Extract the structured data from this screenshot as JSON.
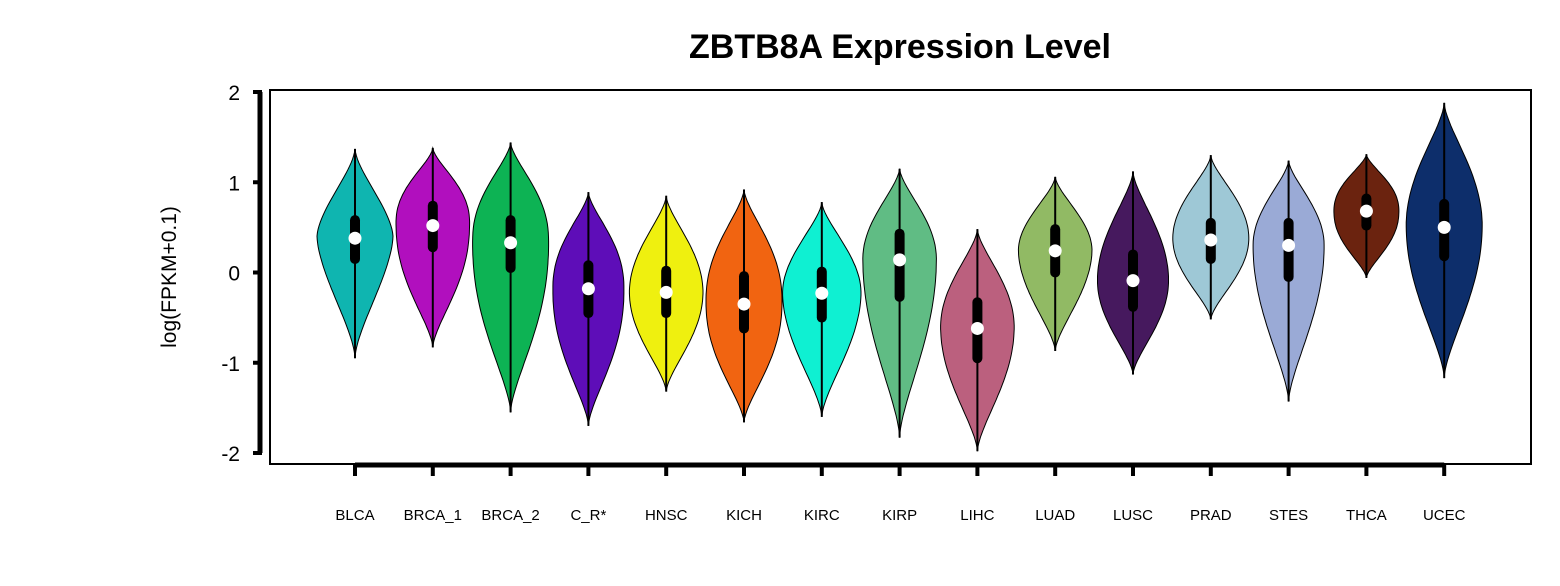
{
  "chart_data": {
    "type": "violin",
    "title": "ZBTB8A Expression Level",
    "xlabel": "",
    "ylabel": "log(FPKM+0.1)",
    "ylim": [
      -2,
      2
    ],
    "yticks": [
      "2",
      "1",
      "0",
      "-1",
      "-2"
    ],
    "ytick_values": [
      2,
      1,
      0,
      -1,
      -2
    ],
    "grid": false,
    "legend": "none",
    "box_color": "#000000",
    "median_marker_color": "#ffffff",
    "categories": [
      "BLCA",
      "BRCA_1",
      "BRCA_2",
      "C_R*",
      "HNSC",
      "KICH",
      "KIRC",
      "KIRP",
      "LIHC",
      "LUAD",
      "LUSC",
      "PRAD",
      "STES",
      "THCA",
      "UCEC"
    ],
    "series": [
      {
        "category": "BLCA",
        "color": "#0fb5b0",
        "min": -0.95,
        "max": 1.37,
        "q1": 0.15,
        "median": 0.38,
        "q3": 0.58,
        "mode": 0.4,
        "width": 0.62,
        "tail": 1.6
      },
      {
        "category": "BRCA_1",
        "color": "#b10fbe",
        "min": -0.83,
        "max": 1.38,
        "q1": 0.28,
        "median": 0.52,
        "q3": 0.74,
        "mode": 0.55,
        "width": 0.6,
        "tail": 2.2
      },
      {
        "category": "BRCA_2",
        "color": "#0db354",
        "min": -1.55,
        "max": 1.44,
        "q1": 0.05,
        "median": 0.33,
        "q3": 0.58,
        "mode": 0.35,
        "width": 0.62,
        "tail": 2.2
      },
      {
        "category": "C_R*",
        "color": "#5e0db8",
        "min": -1.7,
        "max": 0.89,
        "q1": -0.45,
        "median": -0.18,
        "q3": 0.08,
        "mode": -0.18,
        "width": 0.58,
        "tail": 2.2
      },
      {
        "category": "HNSC",
        "color": "#eff00f",
        "min": -1.32,
        "max": 0.85,
        "q1": -0.45,
        "median": -0.22,
        "q3": 0.02,
        "mode": -0.22,
        "width": 0.6,
        "tail": 2.0
      },
      {
        "category": "KICH",
        "color": "#f16411",
        "min": -1.66,
        "max": 0.92,
        "q1": -0.62,
        "median": -0.35,
        "q3": -0.04,
        "mode": -0.32,
        "width": 0.62,
        "tail": 2.2
      },
      {
        "category": "KIRC",
        "color": "#0ff0d2",
        "min": -1.6,
        "max": 0.78,
        "q1": -0.5,
        "median": -0.23,
        "q3": 0.01,
        "mode": -0.22,
        "width": 0.64,
        "tail": 1.9
      },
      {
        "category": "KIRP",
        "color": "#60bc84",
        "min": -1.83,
        "max": 1.15,
        "q1": -0.27,
        "median": 0.14,
        "q3": 0.43,
        "mode": 0.15,
        "width": 0.6,
        "tail": 2.0
      },
      {
        "category": "LIHC",
        "color": "#bb607e",
        "min": -1.98,
        "max": 0.48,
        "q1": -0.95,
        "median": -0.62,
        "q3": -0.33,
        "mode": -0.6,
        "width": 0.6,
        "tail": 2.0
      },
      {
        "category": "LUAD",
        "color": "#91ba64",
        "min": -0.87,
        "max": 1.06,
        "q1": 0.0,
        "median": 0.24,
        "q3": 0.48,
        "mode": 0.25,
        "width": 0.6,
        "tail": 1.9
      },
      {
        "category": "LUSC",
        "color": "#46195e",
        "min": -1.13,
        "max": 1.12,
        "q1": -0.38,
        "median": -0.09,
        "q3": 0.2,
        "mode": -0.09,
        "width": 0.58,
        "tail": 2.0
      },
      {
        "category": "PRAD",
        "color": "#9ec8d6",
        "min": -0.52,
        "max": 1.3,
        "q1": 0.15,
        "median": 0.36,
        "q3": 0.55,
        "mode": 0.38,
        "width": 0.62,
        "tail": 2.0
      },
      {
        "category": "STES",
        "color": "#9aaad6",
        "min": -1.43,
        "max": 1.24,
        "q1": -0.05,
        "median": 0.3,
        "q3": 0.55,
        "mode": 0.3,
        "width": 0.58,
        "tail": 2.0
      },
      {
        "category": "THCA",
        "color": "#6b230f",
        "min": -0.06,
        "max": 1.31,
        "q1": 0.52,
        "median": 0.68,
        "q3": 0.82,
        "mode": 0.68,
        "width": 0.53,
        "tail": 2.2
      },
      {
        "category": "UCEC",
        "color": "#0d2e6b",
        "min": -1.17,
        "max": 1.88,
        "q1": 0.18,
        "median": 0.5,
        "q3": 0.76,
        "mode": 0.52,
        "width": 0.62,
        "tail": 2.0
      }
    ]
  }
}
